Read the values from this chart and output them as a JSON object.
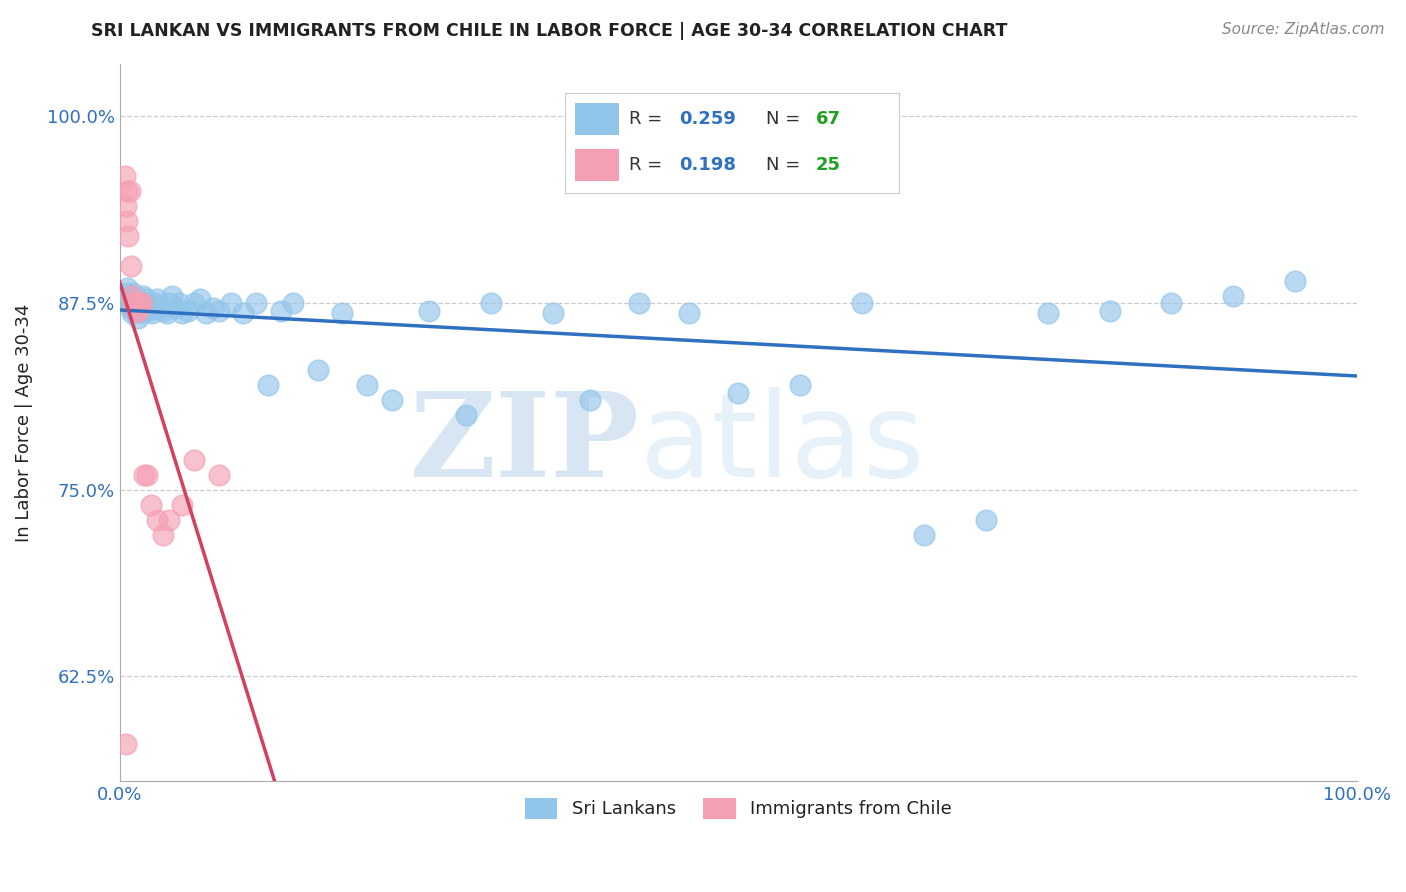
{
  "title": "SRI LANKAN VS IMMIGRANTS FROM CHILE IN LABOR FORCE | AGE 30-34 CORRELATION CHART",
  "source": "Source: ZipAtlas.com",
  "ylabel": "In Labor Force | Age 30-34",
  "xlim": [
    0.0,
    1.0
  ],
  "ylim": [
    0.555,
    1.035
  ],
  "yticks": [
    0.625,
    0.75,
    0.875,
    1.0
  ],
  "ytick_labels": [
    "62.5%",
    "75.0%",
    "87.5%",
    "100.0%"
  ],
  "xtick_positions": [
    0.0,
    0.25,
    0.5,
    0.75,
    1.0
  ],
  "xtick_labels": [
    "0.0%",
    "",
    "",
    "",
    "100.0%"
  ],
  "blue_R": 0.259,
  "blue_N": 67,
  "pink_R": 0.198,
  "pink_N": 25,
  "blue_color": "#92C5EA",
  "pink_color": "#F4A0B4",
  "blue_line_color": "#3070C0",
  "pink_line_color": "#D44060",
  "legend_label_blue": "Sri Lankans",
  "legend_label_pink": "Immigrants from Chile",
  "watermark_zip": "ZIP",
  "watermark_atlas": "atlas",
  "background_color": "#ffffff",
  "grid_color": "#cccccc",
  "title_color": "#222222",
  "axis_label_color": "#222222",
  "tick_color": "#3070C0",
  "legend_R_color": "#3070C0",
  "legend_N_color": "#20A020",
  "blue_x": [
    0.005,
    0.005,
    0.006,
    0.007,
    0.008,
    0.009,
    0.01,
    0.01,
    0.011,
    0.012,
    0.013,
    0.014,
    0.015,
    0.015,
    0.016,
    0.017,
    0.018,
    0.019,
    0.02,
    0.021,
    0.022,
    0.023,
    0.025,
    0.026,
    0.028,
    0.03,
    0.032,
    0.035,
    0.038,
    0.04,
    0.042,
    0.045,
    0.048,
    0.05,
    0.055,
    0.06,
    0.065,
    0.07,
    0.075,
    0.08,
    0.09,
    0.1,
    0.11,
    0.12,
    0.13,
    0.14,
    0.16,
    0.18,
    0.2,
    0.22,
    0.25,
    0.28,
    0.3,
    0.35,
    0.38,
    0.42,
    0.46,
    0.5,
    0.55,
    0.6,
    0.65,
    0.7,
    0.75,
    0.8,
    0.85,
    0.9,
    0.95
  ],
  "blue_y": [
    0.882,
    0.878,
    0.885,
    0.875,
    0.88,
    0.872,
    0.868,
    0.876,
    0.882,
    0.87,
    0.875,
    0.878,
    0.872,
    0.865,
    0.87,
    0.875,
    0.868,
    0.88,
    0.872,
    0.878,
    0.875,
    0.87,
    0.872,
    0.868,
    0.875,
    0.878,
    0.872,
    0.87,
    0.868,
    0.875,
    0.88,
    0.872,
    0.875,
    0.868,
    0.87,
    0.875,
    0.878,
    0.868,
    0.872,
    0.87,
    0.875,
    0.868,
    0.875,
    0.82,
    0.87,
    0.875,
    0.83,
    0.868,
    0.82,
    0.81,
    0.87,
    0.8,
    0.875,
    0.868,
    0.81,
    0.875,
    0.868,
    0.815,
    0.82,
    0.875,
    0.72,
    0.73,
    0.868,
    0.87,
    0.875,
    0.88,
    0.89
  ],
  "pink_x": [
    0.004,
    0.005,
    0.006,
    0.006,
    0.007,
    0.008,
    0.009,
    0.01,
    0.011,
    0.012,
    0.013,
    0.014,
    0.015,
    0.016,
    0.018,
    0.02,
    0.022,
    0.025,
    0.03,
    0.035,
    0.04,
    0.05,
    0.06,
    0.08,
    0.005
  ],
  "pink_y": [
    0.96,
    0.94,
    0.95,
    0.93,
    0.92,
    0.95,
    0.9,
    0.88,
    0.875,
    0.875,
    0.875,
    0.87,
    0.87,
    0.875,
    0.875,
    0.76,
    0.76,
    0.74,
    0.73,
    0.72,
    0.73,
    0.74,
    0.77,
    0.76,
    0.58
  ]
}
